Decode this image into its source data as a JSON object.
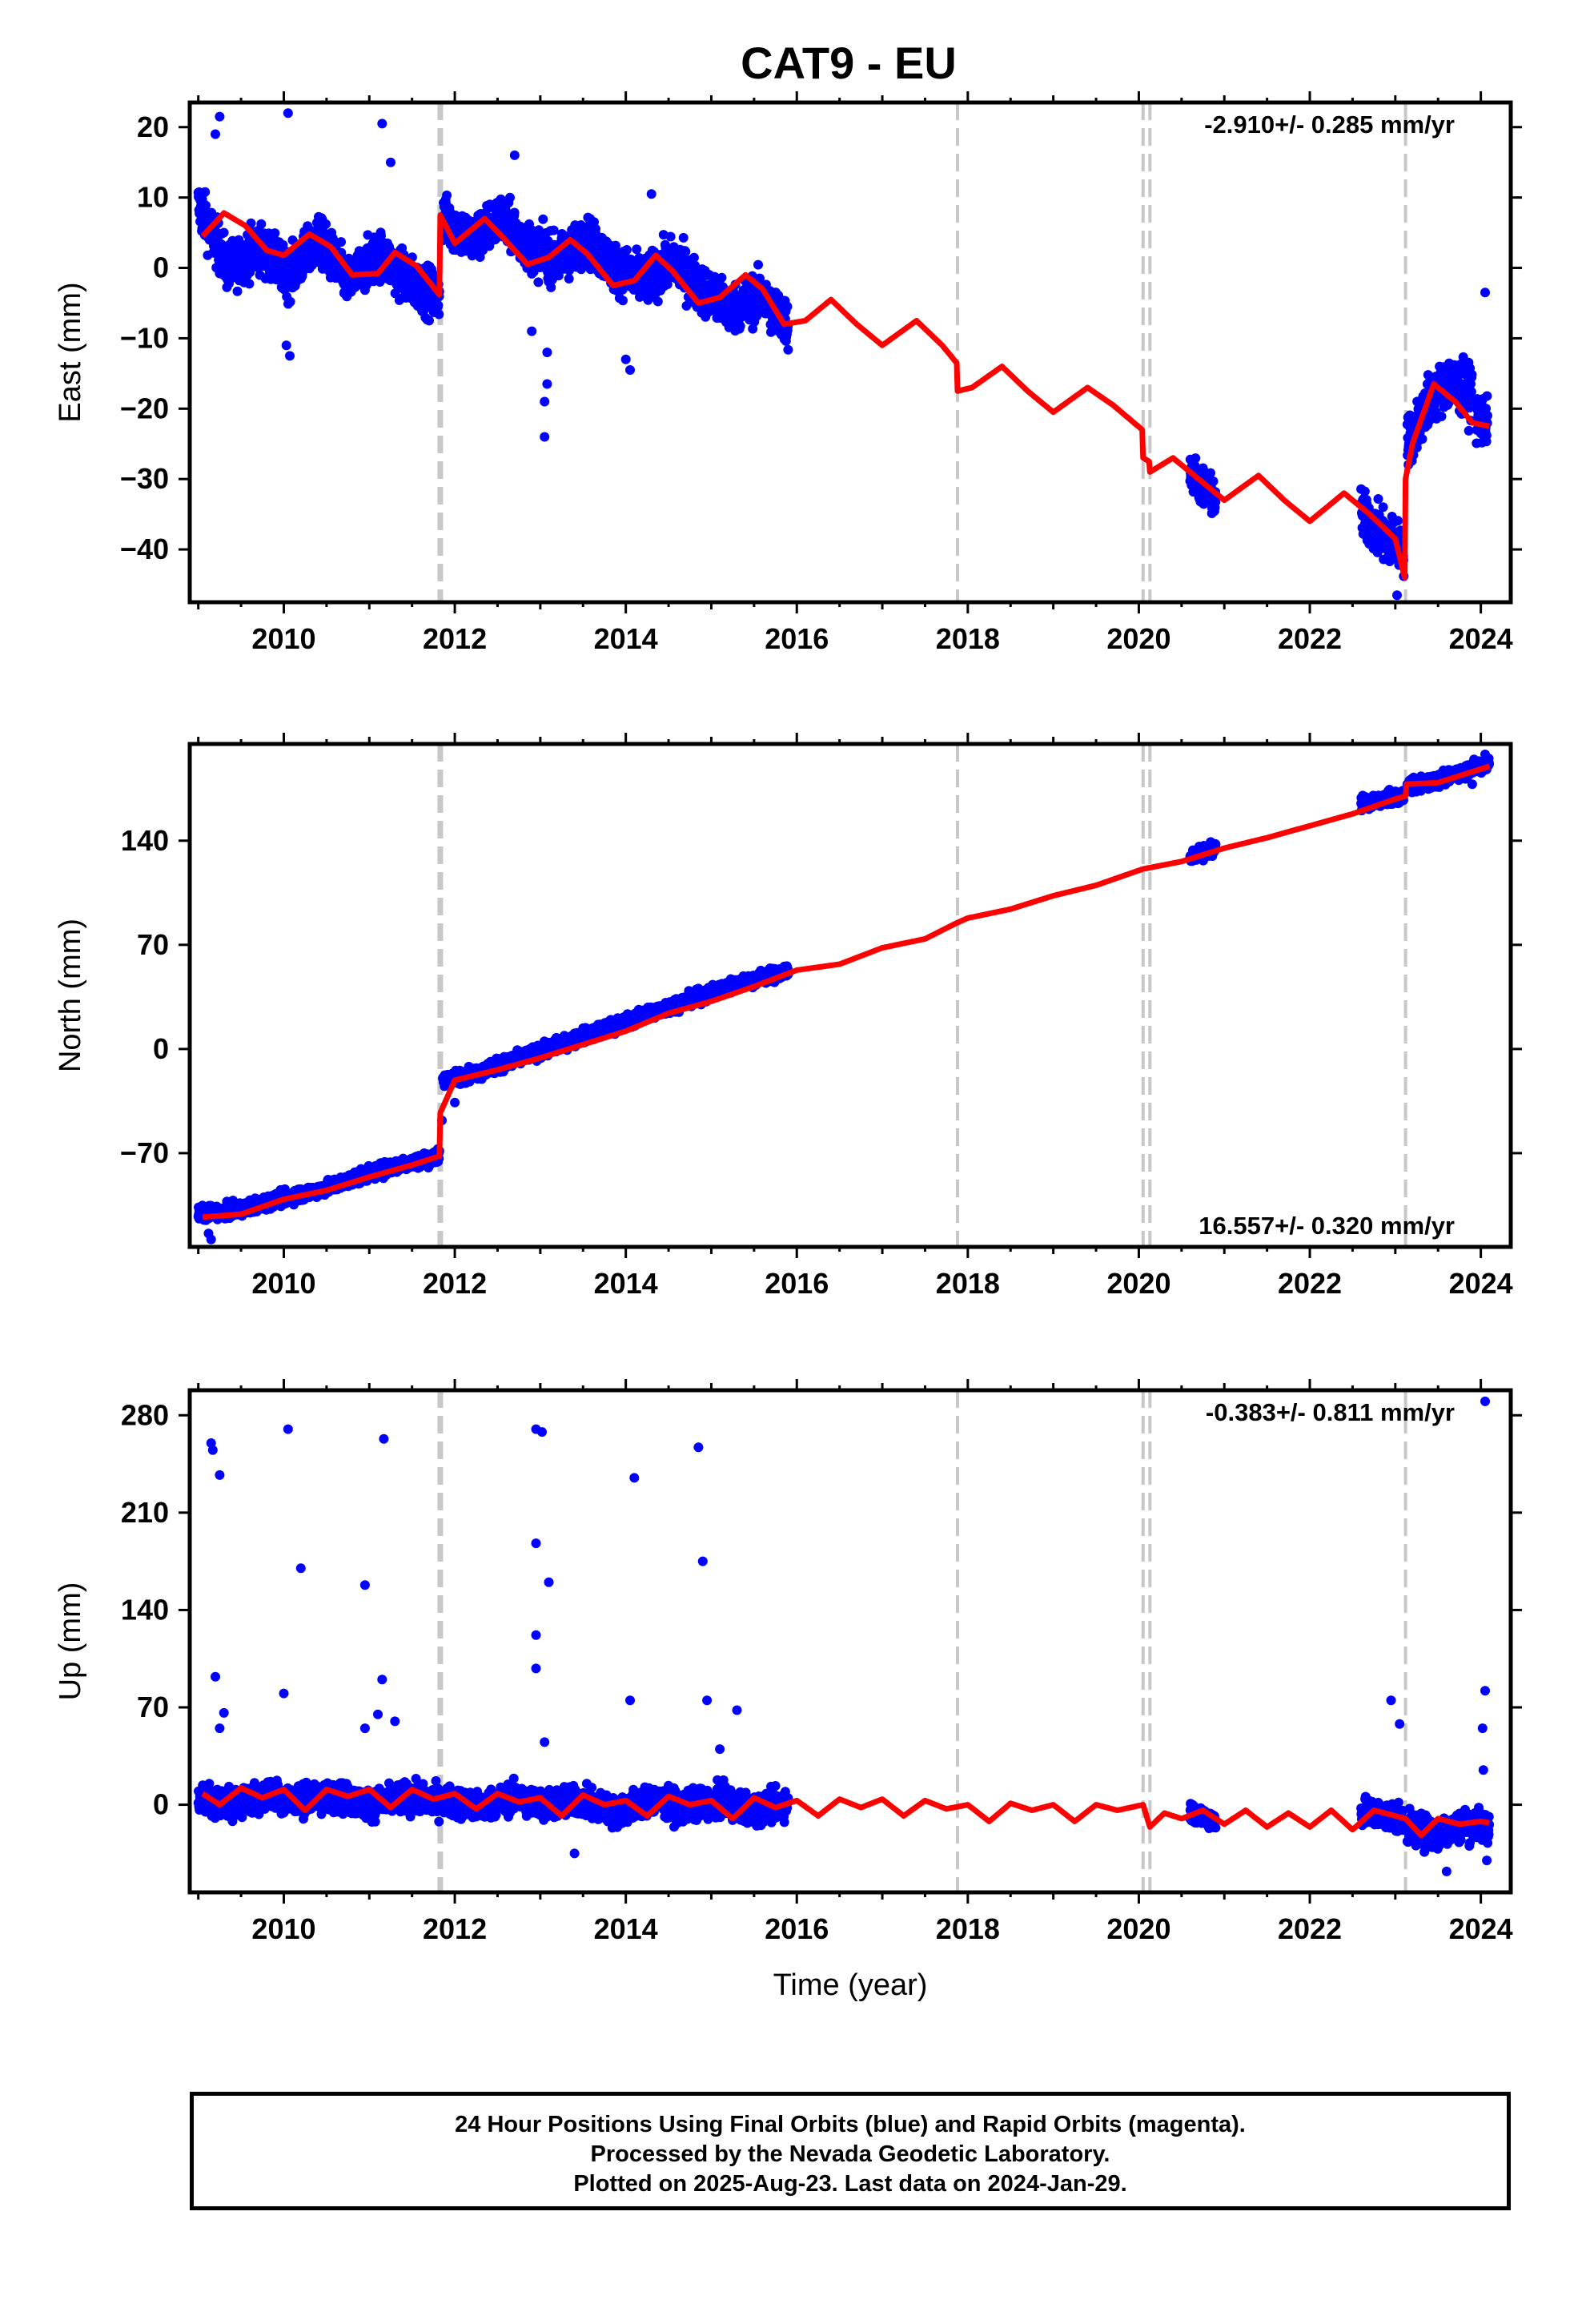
{
  "figure_title": "CAT9 - EU",
  "footer": {
    "line1": "24 Hour Positions Using Final Orbits (blue) and Rapid Orbits (magenta).",
    "line2": "Processed by the Nevada Geodetic Laboratory.",
    "line3": "Plotted on 2025-Aug-23. Last data on 2024-Jan-29."
  },
  "colors": {
    "data_points": "#0000ff",
    "model_line": "#ff0000",
    "event_lines": "#c8c8c8",
    "frame": "#000000"
  },
  "chart_data": [
    {
      "type": "scatter",
      "component": "east",
      "ylabel": "East (mm)",
      "xlabel": "",
      "xlim": [
        2008.9,
        2024.35
      ],
      "ylim": [
        -47.5,
        23.5
      ],
      "xticks": [
        2010,
        2012,
        2014,
        2016,
        2018,
        2020,
        2022,
        2024
      ],
      "yticks": [
        20,
        10,
        0,
        -10,
        -20,
        -30,
        -40
      ],
      "ytick_labels": [
        "20",
        "10",
        "0",
        "−10",
        "−20",
        "−30",
        "−40"
      ],
      "rate_text": "-2.910+/- 0.285 mm/yr",
      "rate_position": "top-right",
      "event_lines": [
        2011.83,
        2017.88,
        2020.05,
        2020.13,
        2023.12
      ],
      "model": {
        "knots": [
          2009.05,
          2009.3,
          2009.55,
          2009.8,
          2010.0,
          2010.3,
          2010.55,
          2010.8,
          2011.1,
          2011.3,
          2011.55,
          2011.82,
          2011.83,
          2012.0,
          2012.35,
          2012.55,
          2012.85,
          2013.1,
          2013.35,
          2013.55,
          2013.85,
          2014.1,
          2014.35,
          2014.55,
          2014.85,
          2015.1,
          2015.4,
          2015.6,
          2015.85,
          2016.1,
          2016.4,
          2016.7,
          2017.0,
          2017.4,
          2017.7,
          2017.87,
          2017.88,
          2018.05,
          2018.4,
          2018.7,
          2019.0,
          2019.4,
          2019.7,
          2020.04,
          2020.05,
          2020.12,
          2020.13,
          2020.4,
          2020.7,
          2021.0,
          2021.4,
          2021.7,
          2022.0,
          2022.4,
          2022.7,
          2023.0,
          2023.11,
          2023.12,
          2023.2,
          2023.45,
          2023.7,
          2023.9,
          2024.1
        ],
        "values": [
          4.5,
          7.8,
          6.0,
          2.5,
          1.8,
          4.8,
          3.0,
          -1.0,
          -0.8,
          2.2,
          0.3,
          -3.8,
          7.5,
          3.5,
          7.0,
          4.5,
          0.5,
          1.5,
          4.0,
          2.0,
          -2.5,
          -1.8,
          1.8,
          -0.5,
          -5.0,
          -4.2,
          -1.0,
          -3.0,
          -8.0,
          -7.5,
          -4.5,
          -8.0,
          -11.0,
          -7.5,
          -11.0,
          -13.5,
          -17.5,
          -17.0,
          -14.0,
          -17.5,
          -20.5,
          -17.0,
          -19.5,
          -23.0,
          -27.0,
          -27.5,
          -29.0,
          -27.0,
          -30.0,
          -33.0,
          -29.5,
          -33.0,
          -36.0,
          -32.0,
          -35.0,
          -38.5,
          -44.0,
          -30.0,
          -25.0,
          -16.5,
          -19.0,
          -22.0,
          -22.5
        ]
      },
      "observations": {
        "segments": [
          {
            "x": [
              2009.0,
              2011.82
            ],
            "center": [
              9,
              0,
              3,
              -1,
              4,
              -2,
              2,
              -2,
              -4
            ],
            "spread": 2.4
          },
          {
            "x": [
              2011.86,
              2015.9
            ],
            "center": [
              7,
              4,
              7,
              3,
              1,
              4,
              0,
              -2,
              1,
              -3,
              -6,
              -4,
              -8
            ],
            "spread": 2.4
          },
          {
            "x": [
              2020.6,
              2020.9
            ],
            "center": [
              -29,
              -33
            ],
            "spread": 2.0
          },
          {
            "x": [
              2022.6,
              2023.1
            ],
            "center": [
              -35,
              -38,
              -40
            ],
            "spread": 2.5
          },
          {
            "x": [
              2023.14,
              2023.9
            ],
            "center": [
              -25,
              -19,
              -16,
              -18
            ],
            "spread": 2.6
          },
          {
            "x": [
              2023.95,
              2024.08
            ],
            "center": [
              -21,
              -22
            ],
            "spread": 2.4
          }
        ],
        "outliers": [
          [
            2009.25,
            21.5
          ],
          [
            2009.2,
            19.0
          ],
          [
            2010.05,
            22.0
          ],
          [
            2011.15,
            20.5
          ],
          [
            2011.25,
            15.0
          ],
          [
            2012.7,
            16.0
          ],
          [
            2010.07,
            -12.5
          ],
          [
            2010.03,
            -11.0
          ],
          [
            2013.05,
            -24.0
          ],
          [
            2013.05,
            -19.0
          ],
          [
            2013.08,
            -16.5
          ],
          [
            2012.9,
            -9.0
          ],
          [
            2014.0,
            -13.0
          ],
          [
            2014.05,
            -14.5
          ],
          [
            2014.3,
            10.5
          ],
          [
            2024.05,
            -3.5
          ],
          [
            2023.02,
            -46.5
          ],
          [
            2013.08,
            -12.0
          ]
        ]
      }
    },
    {
      "type": "scatter",
      "component": "north",
      "ylabel": "North (mm)",
      "xlabel": "",
      "xlim": [
        2008.9,
        2024.35
      ],
      "ylim": [
        -133,
        205
      ],
      "xticks": [
        2010,
        2012,
        2014,
        2016,
        2018,
        2020,
        2022,
        2024
      ],
      "yticks": [
        140,
        70,
        0,
        -70
      ],
      "ytick_labels": [
        "140",
        "70",
        "0",
        "−70"
      ],
      "rate_text": "16.557+/- 0.320 mm/yr",
      "rate_position": "bottom-right",
      "event_lines": [
        2011.83,
        2017.88,
        2020.05,
        2020.13,
        2023.12
      ],
      "model": {
        "knots": [
          2009.05,
          2009.5,
          2010.0,
          2010.5,
          2011.0,
          2011.5,
          2011.82,
          2011.83,
          2012.0,
          2012.5,
          2013.0,
          2013.5,
          2014.0,
          2014.5,
          2015.0,
          2015.5,
          2016.0,
          2016.5,
          2017.0,
          2017.5,
          2017.88,
          2018.0,
          2018.5,
          2019.0,
          2019.5,
          2020.05,
          2020.5,
          2021.0,
          2021.5,
          2022.0,
          2022.5,
          2023.0,
          2023.12,
          2023.13,
          2023.5,
          2024.1
        ],
        "values": [
          -113,
          -111,
          -101,
          -95,
          -86,
          -78,
          -72,
          -43,
          -21,
          -14,
          -6,
          3,
          12,
          24,
          32,
          42,
          53,
          57,
          68,
          74,
          85,
          88,
          94,
          103,
          110,
          121,
          126,
          135,
          142,
          150,
          158,
          168,
          170,
          178,
          179,
          190
        ]
      },
      "observations": {
        "segments": [
          {
            "x": [
              2009.0,
              2011.82
            ],
            "center": [
              -111,
              -108,
              -101,
              -95,
              -86,
              -78,
              -72
            ],
            "spread": 3.2
          },
          {
            "x": [
              2011.86,
              2015.9
            ],
            "center": [
              -21,
              -16,
              -8,
              0,
              8,
              16,
              24,
              32,
              40,
              47,
              52
            ],
            "spread": 3.2
          },
          {
            "x": [
              2020.6,
              2020.9
            ],
            "center": [
              129,
              135
            ],
            "spread": 3.0
          },
          {
            "x": [
              2022.6,
              2023.1
            ],
            "center": [
              165,
              170
            ],
            "spread": 3.2
          },
          {
            "x": [
              2023.14,
              2024.1
            ],
            "center": [
              177,
              179,
              183,
              188,
              192
            ],
            "spread": 3.2
          }
        ],
        "outliers": [
          [
            2009.15,
            -128
          ],
          [
            2009.12,
            -124
          ],
          [
            2012.0,
            -36
          ],
          [
            2011.85,
            -48
          ],
          [
            2013.5,
            14
          ],
          [
            2014.3,
            22
          ],
          [
            2024.05,
            198
          ],
          [
            2023.9,
            178
          ]
        ]
      }
    },
    {
      "type": "scatter",
      "component": "up",
      "ylabel": "Up (mm)",
      "xlabel": "Time (year)",
      "xlim": [
        2008.9,
        2024.35
      ],
      "ylim": [
        -63,
        298
      ],
      "xticks": [
        2010,
        2012,
        2014,
        2016,
        2018,
        2020,
        2022,
        2024
      ],
      "yticks": [
        280,
        210,
        140,
        70,
        0
      ],
      "ytick_labels": [
        "280",
        "210",
        "140",
        "70",
        "0"
      ],
      "rate_text": "-0.383+/- 0.811 mm/yr",
      "rate_position": "top-right",
      "event_lines": [
        2011.83,
        2017.88,
        2020.05,
        2020.13,
        2023.12
      ],
      "model": {
        "knots": [
          2009.05,
          2009.25,
          2009.5,
          2009.75,
          2010.0,
          2010.25,
          2010.5,
          2010.75,
          2011.0,
          2011.25,
          2011.5,
          2011.75,
          2012.0,
          2012.25,
          2012.5,
          2012.75,
          2013.0,
          2013.25,
          2013.5,
          2013.75,
          2014.0,
          2014.25,
          2014.5,
          2014.75,
          2015.0,
          2015.25,
          2015.5,
          2015.75,
          2016.0,
          2016.25,
          2016.5,
          2016.75,
          2017.0,
          2017.25,
          2017.5,
          2017.75,
          2018.0,
          2018.25,
          2018.5,
          2018.75,
          2019.0,
          2019.25,
          2019.5,
          2019.75,
          2020.05,
          2020.13,
          2020.3,
          2020.5,
          2020.75,
          2021.0,
          2021.25,
          2021.5,
          2021.75,
          2022.0,
          2022.25,
          2022.5,
          2022.75,
          2023.0,
          2023.12,
          2023.3,
          2023.5,
          2023.75,
          2024.0,
          2024.1
        ],
        "values": [
          8,
          0,
          12,
          5,
          11,
          -4,
          11,
          6,
          11,
          -2,
          11,
          4,
          8,
          -3,
          8,
          2,
          5,
          -8,
          7,
          0,
          3,
          -8,
          6,
          0,
          3,
          -10,
          5,
          -2,
          3,
          -8,
          4,
          -2,
          4,
          -8,
          3,
          -3,
          0,
          -12,
          1,
          -4,
          0,
          -12,
          0,
          -4,
          0,
          -16,
          -6,
          -10,
          -4,
          -14,
          -4,
          -16,
          -6,
          -16,
          -4,
          -18,
          -4,
          -8,
          -10,
          -22,
          -10,
          -14,
          -12,
          -13
        ]
      },
      "observations": {
        "segments": [
          {
            "x": [
              2009.0,
              2011.82
            ],
            "center": [
              5,
              0,
              8,
              3,
              6,
              0,
              5,
              2
            ],
            "spread": 7.5
          },
          {
            "x": [
              2011.86,
              2015.9
            ],
            "center": [
              4,
              -2,
              5,
              0,
              3,
              -6,
              4,
              -2,
              3,
              -4,
              2
            ],
            "spread": 7.5
          },
          {
            "x": [
              2020.6,
              2020.9
            ],
            "center": [
              -5,
              -12
            ],
            "spread": 5.0
          },
          {
            "x": [
              2022.6,
              2023.1
            ],
            "center": [
              -5,
              -10
            ],
            "spread": 7.0
          },
          {
            "x": [
              2023.14,
              2024.1
            ],
            "center": [
              -16,
              -22,
              -14,
              -15
            ],
            "spread": 8.0
          }
        ],
        "outliers": [
          [
            2009.15,
            260
          ],
          [
            2009.17,
            255
          ],
          [
            2009.25,
            237
          ],
          [
            2010.05,
            270
          ],
          [
            2010.2,
            170
          ],
          [
            2010.95,
            158
          ],
          [
            2011.17,
            263
          ],
          [
            2012.95,
            270
          ],
          [
            2013.02,
            268
          ],
          [
            2012.95,
            188
          ],
          [
            2013.1,
            160
          ],
          [
            2012.95,
            122
          ],
          [
            2012.95,
            98
          ],
          [
            2014.1,
            235
          ],
          [
            2014.85,
            257
          ],
          [
            2014.9,
            175
          ],
          [
            2024.05,
            290
          ],
          [
            2009.2,
            92
          ],
          [
            2010.0,
            80
          ],
          [
            2011.15,
            90
          ],
          [
            2014.05,
            75
          ],
          [
            2014.95,
            75
          ],
          [
            2022.95,
            75
          ],
          [
            2023.05,
            58
          ],
          [
            2024.05,
            82
          ],
          [
            2024.02,
            55
          ],
          [
            2009.3,
            66
          ],
          [
            2009.25,
            55
          ],
          [
            2011.1,
            65
          ],
          [
            2011.3,
            60
          ],
          [
            2010.95,
            55
          ],
          [
            2013.05,
            45
          ],
          [
            2015.3,
            68
          ],
          [
            2015.1,
            40
          ],
          [
            2024.03,
            25
          ],
          [
            2023.6,
            -48
          ],
          [
            2013.4,
            -35
          ],
          [
            2024.07,
            -40
          ]
        ]
      }
    }
  ]
}
